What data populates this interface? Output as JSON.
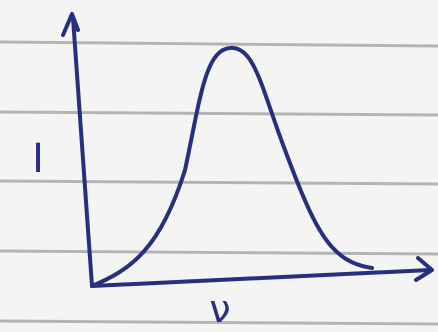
{
  "diagram": {
    "y_label": "I",
    "x_label": "ν"
  }
}
